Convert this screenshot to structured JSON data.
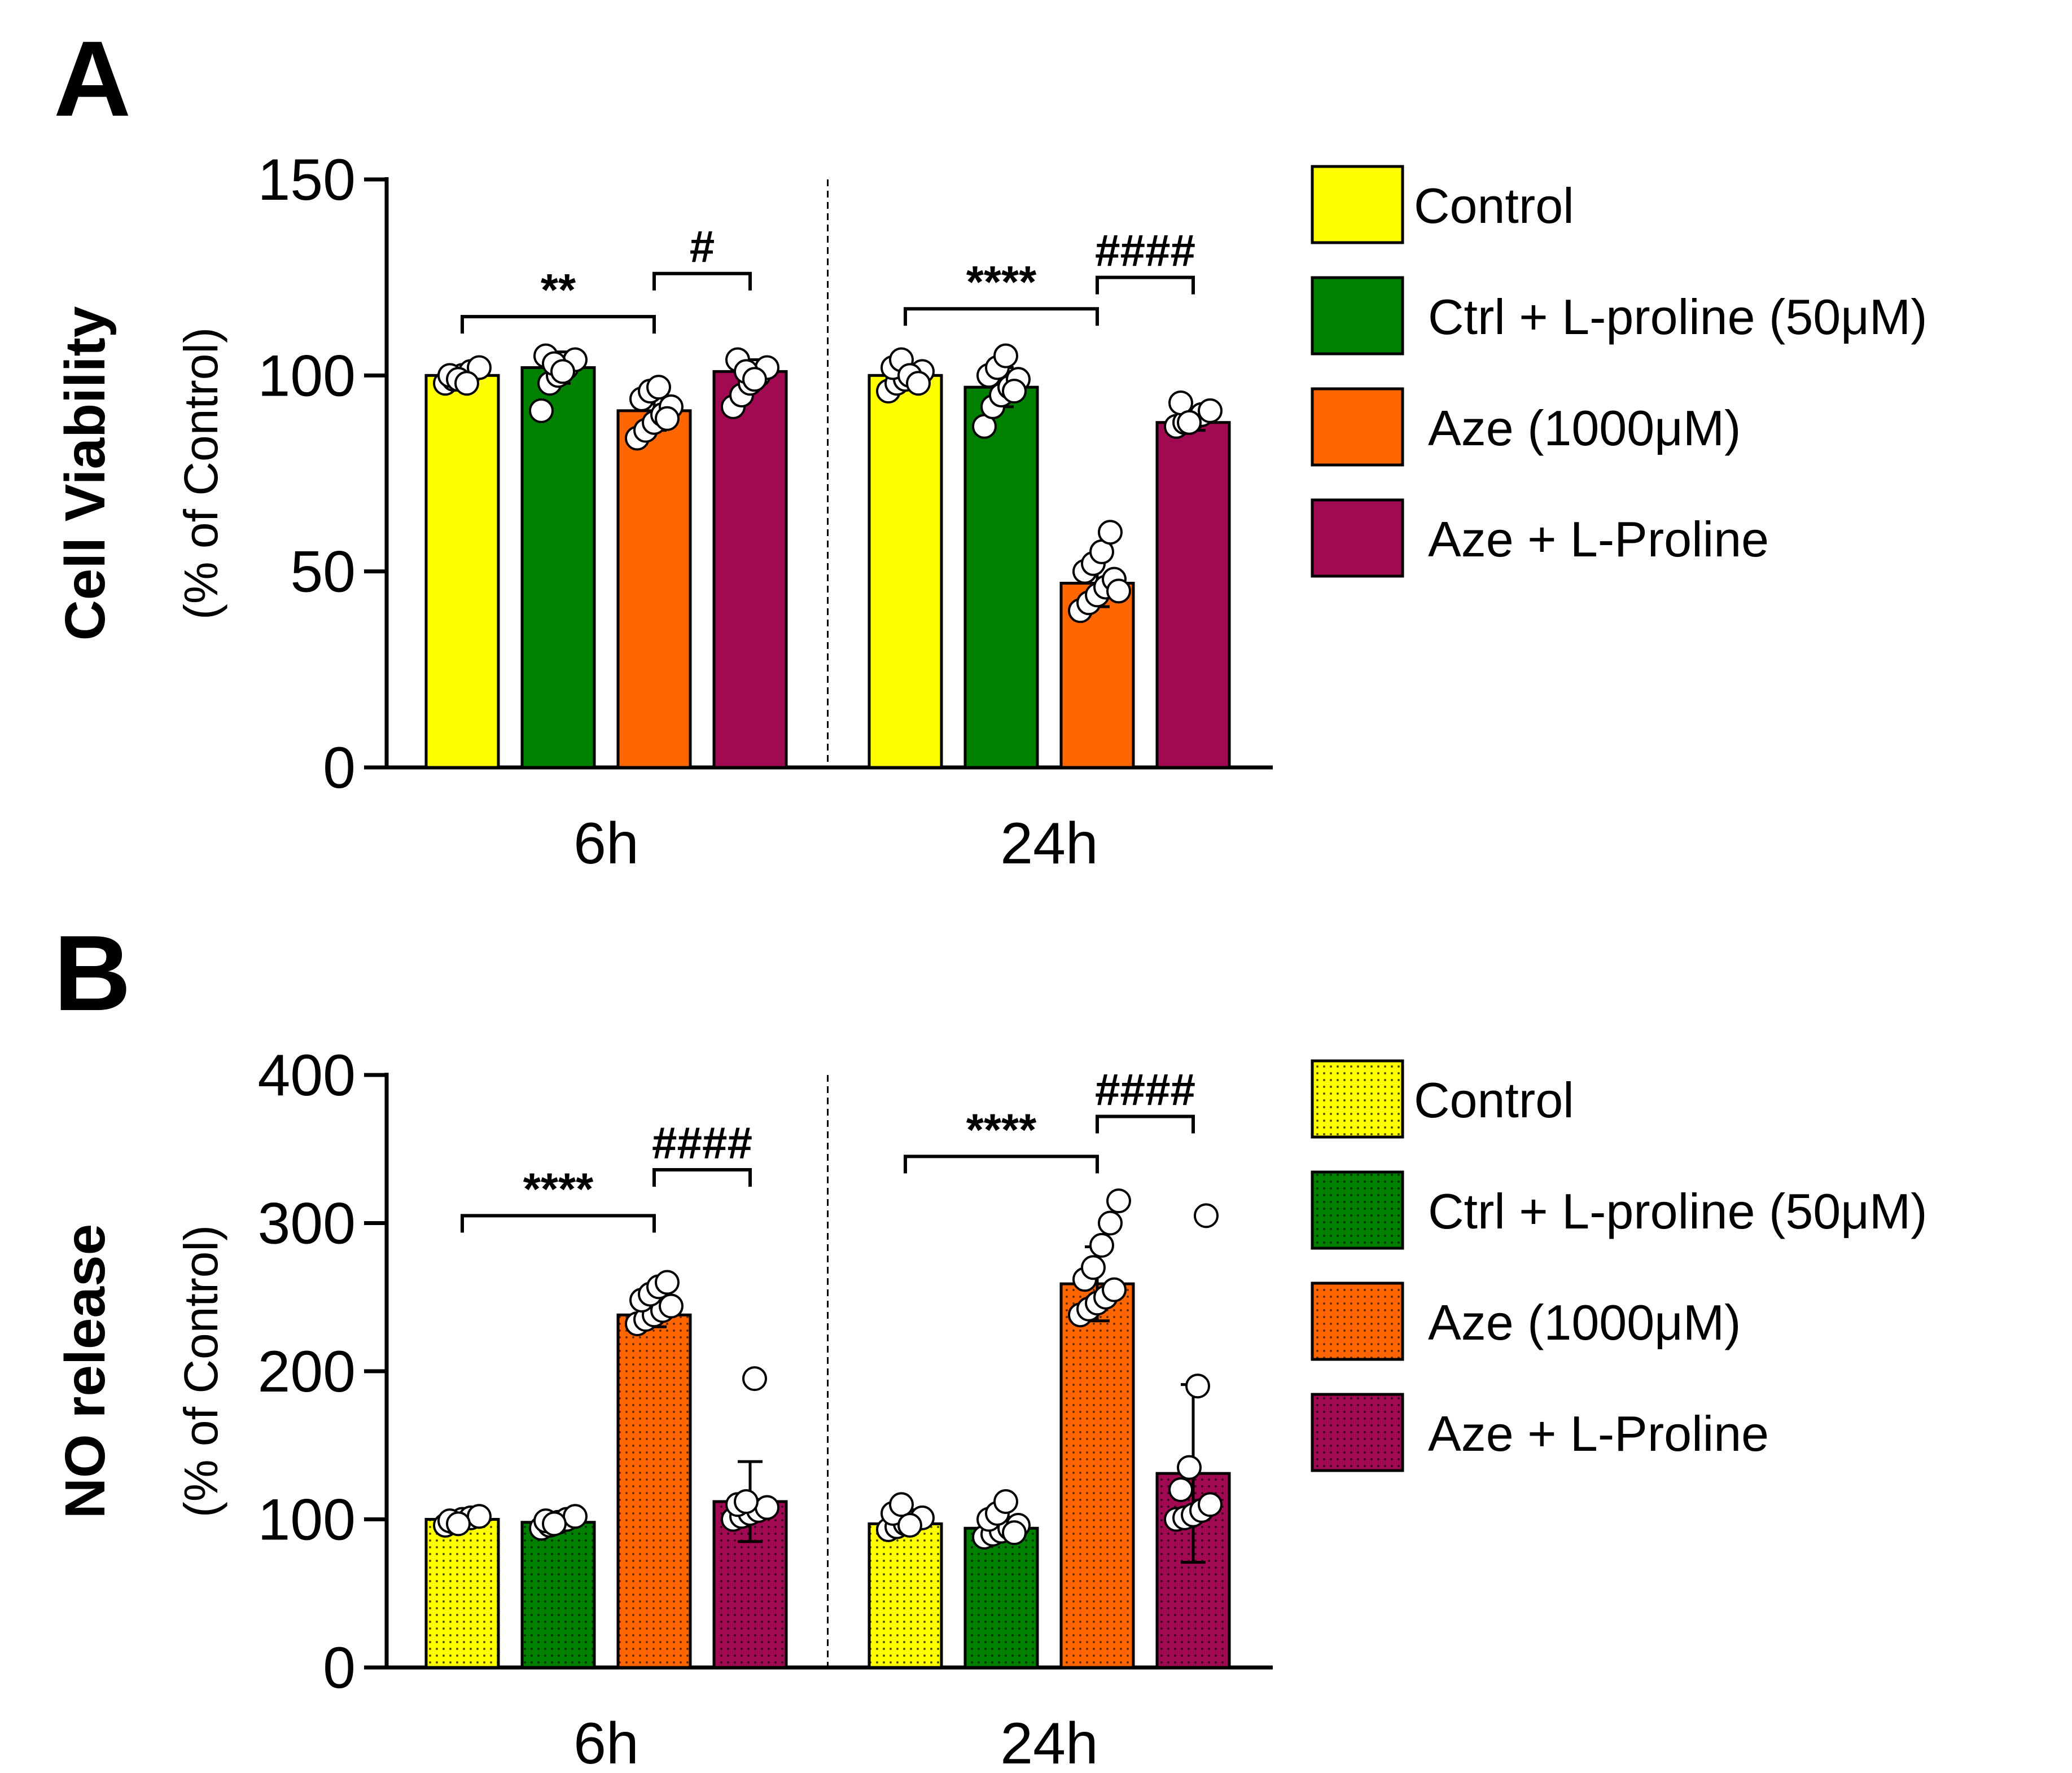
{
  "chart_data": [
    {
      "type": "bar",
      "panel": "A",
      "ylabel": "Cell Viability",
      "ylabel_sub": "(% of Control)",
      "ylim": [
        0,
        150
      ],
      "yticks": [
        0,
        50,
        100,
        150
      ],
      "categories": [
        "6h",
        "24h"
      ],
      "series": [
        {
          "name": "Control",
          "color": "#ffff00",
          "values": [
            100,
            100
          ],
          "error": [
            2,
            2
          ],
          "points": [
            [
              98,
              99,
              100,
              101,
              102,
              100,
              99,
              98
            ],
            [
              96,
              98,
              99,
              100,
              101,
              102,
              104,
              100,
              98
            ]
          ]
        },
        {
          "name": "Ctrl + L-proline (50μM)",
          "color": "#008000",
          "values": [
            102,
            97
          ],
          "error": [
            4,
            5
          ],
          "points": [
            [
              91,
              98,
              100,
              102,
              104,
              105,
              103,
              101
            ],
            [
              87,
              92,
              95,
              97,
              99,
              100,
              102,
              105,
              96
            ]
          ]
        },
        {
          "name": "Aze (1000μM)",
          "color": "#ff6600",
          "values": [
            91,
            47
          ],
          "error": [
            5,
            6
          ],
          "points": [
            [
              84,
              86,
              88,
              90,
              92,
              94,
              96,
              97,
              89
            ],
            [
              40,
              42,
              44,
              46,
              48,
              50,
              52,
              55,
              60,
              45
            ]
          ]
        },
        {
          "name": "Aze + L-Proline",
          "color": "#a10a52",
          "values": [
            101,
            88
          ],
          "error": [
            3,
            2
          ],
          "points": [
            [
              92,
              95,
              98,
              100,
              102,
              104,
              101,
              99
            ],
            [
              87,
              88,
              89,
              90,
              91,
              93,
              88
            ]
          ]
        }
      ],
      "brackets": [
        {
          "group": 0,
          "from": 0,
          "to": 2,
          "level": 115,
          "label": "**"
        },
        {
          "group": 0,
          "from": 2,
          "to": 3,
          "level": 126,
          "label": "#"
        },
        {
          "group": 1,
          "from": 0,
          "to": 2,
          "level": 117,
          "label": "****"
        },
        {
          "group": 1,
          "from": 2,
          "to": 3,
          "level": 125,
          "label": "####"
        }
      ]
    },
    {
      "type": "bar",
      "panel": "B",
      "ylabel": "NO release",
      "ylabel_sub": "(% of Control)",
      "ylim": [
        0,
        400
      ],
      "yticks": [
        0,
        100,
        200,
        300,
        400
      ],
      "categories": [
        "6h",
        "24h"
      ],
      "series": [
        {
          "name": "Control",
          "color": "#ffff00",
          "values": [
            100,
            97
          ],
          "error": [
            3,
            5
          ],
          "points": [
            [
              96,
              98,
              100,
              101,
              102,
              99,
              97
            ],
            [
              93,
              95,
              97,
              99,
              101,
              104,
              110,
              96
            ]
          ]
        },
        {
          "name": "Ctrl + L-proline (50μM)",
          "color": "#008000",
          "values": [
            98,
            94
          ],
          "error": [
            4,
            6
          ],
          "points": [
            [
              94,
              96,
              98,
              100,
              102,
              99,
              97
            ],
            [
              88,
              90,
              92,
              94,
              96,
              100,
              104,
              112,
              91
            ]
          ]
        },
        {
          "name": "Aze (1000μM)",
          "color": "#ff6600",
          "values": [
            238,
            259
          ],
          "error": [
            8,
            25
          ],
          "points": [
            [
              232,
              235,
              238,
              241,
              244,
              248,
              252,
              257,
              260
            ],
            [
              238,
              242,
              246,
              250,
              255,
              262,
              270,
              285,
              300,
              315
            ]
          ]
        },
        {
          "name": "Aze + L-Proline",
          "color": "#a10a52",
          "values": [
            112,
            131
          ],
          "error": [
            27,
            60
          ],
          "points": [
            [
              100,
              102,
              104,
              106,
              108,
              110,
              112,
              195
            ],
            [
              100,
              101,
              103,
              106,
              110,
              120,
              135,
              190,
              305
            ]
          ]
        }
      ],
      "brackets": [
        {
          "group": 0,
          "from": 0,
          "to": 2,
          "level": 305,
          "label": "****"
        },
        {
          "group": 0,
          "from": 2,
          "to": 3,
          "level": 336,
          "label": "####"
        },
        {
          "group": 1,
          "from": 0,
          "to": 2,
          "level": 345,
          "label": "****"
        },
        {
          "group": 1,
          "from": 2,
          "to": 3,
          "level": 372,
          "label": "####"
        }
      ]
    }
  ]
}
